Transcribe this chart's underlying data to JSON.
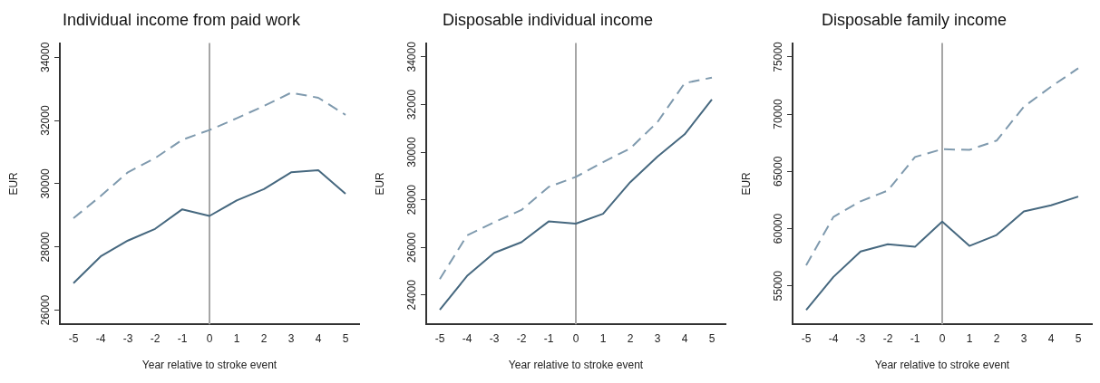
{
  "chart_data": [
    {
      "type": "line",
      "title": "Individual income from paid work",
      "xlabel": "Year relative to stroke event",
      "ylabel": "EUR",
      "x": [
        -5,
        -4,
        -3,
        -2,
        -1,
        0,
        1,
        2,
        3,
        4,
        5
      ],
      "xlim": [
        -5.5,
        5.5
      ],
      "xticks": [
        -5,
        -4,
        -3,
        -2,
        -1,
        0,
        1,
        2,
        3,
        4,
        5
      ],
      "ylim": [
        25550,
        34450
      ],
      "yticks": [
        26000,
        28000,
        30000,
        32000,
        34000
      ],
      "grid": false,
      "legend": false,
      "marker": "none",
      "series": [
        {
          "color": "#46687f",
          "line_style": "solid",
          "values": [
            26850,
            27700,
            28200,
            28570,
            29190,
            28980,
            29470,
            29830,
            30360,
            30430,
            29680
          ]
        },
        {
          "color": "#7f9aae",
          "line_style": "dashed",
          "values": [
            28910,
            29610,
            30360,
            30810,
            31390,
            31700,
            32070,
            32460,
            32880,
            32720,
            32180
          ]
        }
      ],
      "ref_lines": [
        {
          "axis": "x",
          "value": 0,
          "color": "#a6a6a6"
        }
      ]
    },
    {
      "type": "line",
      "title": "Disposable individual income",
      "xlabel": "Year relative to stroke event",
      "ylabel": "EUR",
      "x": [
        -5,
        -4,
        -3,
        -2,
        -1,
        0,
        1,
        2,
        3,
        4,
        5
      ],
      "xlim": [
        -5.5,
        5.5
      ],
      "xticks": [
        -5,
        -4,
        -3,
        -2,
        -1,
        0,
        1,
        2,
        3,
        4,
        5
      ],
      "ylim": [
        22770,
        34580
      ],
      "yticks": [
        24000,
        26000,
        28000,
        30000,
        32000,
        34000
      ],
      "grid": false,
      "legend": false,
      "marker": "none",
      "series": [
        {
          "color": "#46687f",
          "line_style": "solid",
          "values": [
            23380,
            24800,
            25770,
            26220,
            27090,
            27000,
            27410,
            28740,
            29810,
            30750,
            32210
          ]
        },
        {
          "color": "#7f9aae",
          "line_style": "dashed",
          "values": [
            24670,
            26500,
            27060,
            27570,
            28540,
            28960,
            29580,
            30160,
            31260,
            32900,
            33130
          ]
        }
      ],
      "ref_lines": [
        {
          "axis": "x",
          "value": 0,
          "color": "#a6a6a6"
        }
      ]
    },
    {
      "type": "line",
      "title": "Disposable family income",
      "xlabel": "Year relative to stroke event",
      "ylabel": "EUR",
      "x": [
        -5,
        -4,
        -3,
        -2,
        -1,
        0,
        1,
        2,
        3,
        4,
        5
      ],
      "xlim": [
        -5.5,
        5.5
      ],
      "xticks": [
        -5,
        -4,
        -3,
        -2,
        -1,
        0,
        1,
        2,
        3,
        4,
        5
      ],
      "ylim": [
        51640,
        76210
      ],
      "yticks": [
        55000,
        60000,
        65000,
        70000,
        75000
      ],
      "grid": false,
      "legend": false,
      "marker": "none",
      "series": [
        {
          "color": "#46687f",
          "line_style": "solid",
          "values": [
            52900,
            55780,
            58010,
            58630,
            58410,
            60620,
            58490,
            59440,
            61510,
            62040,
            62800
          ]
        },
        {
          "color": "#7f9aae",
          "line_style": "dashed",
          "values": [
            56800,
            61020,
            62390,
            63330,
            66260,
            66940,
            66880,
            67690,
            70650,
            72400,
            74010
          ]
        }
      ],
      "ref_lines": [
        {
          "axis": "x",
          "value": 0,
          "color": "#a6a6a6"
        }
      ]
    }
  ]
}
